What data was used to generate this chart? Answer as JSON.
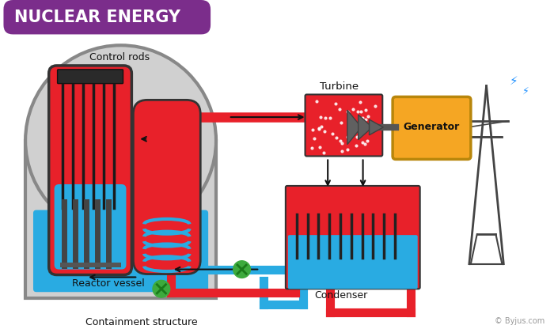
{
  "title": "NUCLEAR ENERGY",
  "title_bg": "#7B2D8B",
  "title_color": "#FFFFFF",
  "bg_color": "#FFFFFF",
  "label_control_rods": "Control rods",
  "label_reactor_vessel": "Reactor vessel",
  "label_containment": "Containment structure",
  "label_turbine": "Turbine",
  "label_generator": "Generator",
  "label_condenser": "Condenser",
  "label_copyright": "© Byjus.com",
  "color_red": "#E8212A",
  "color_blue": "#29ABE2",
  "color_gray": "#B0B0B0",
  "color_dark_gray": "#555555",
  "color_light_gray": "#D0D0D0",
  "color_green": "#3DAA3D",
  "color_yellow": "#F5A623",
  "color_black": "#111111",
  "color_outline": "#888888"
}
